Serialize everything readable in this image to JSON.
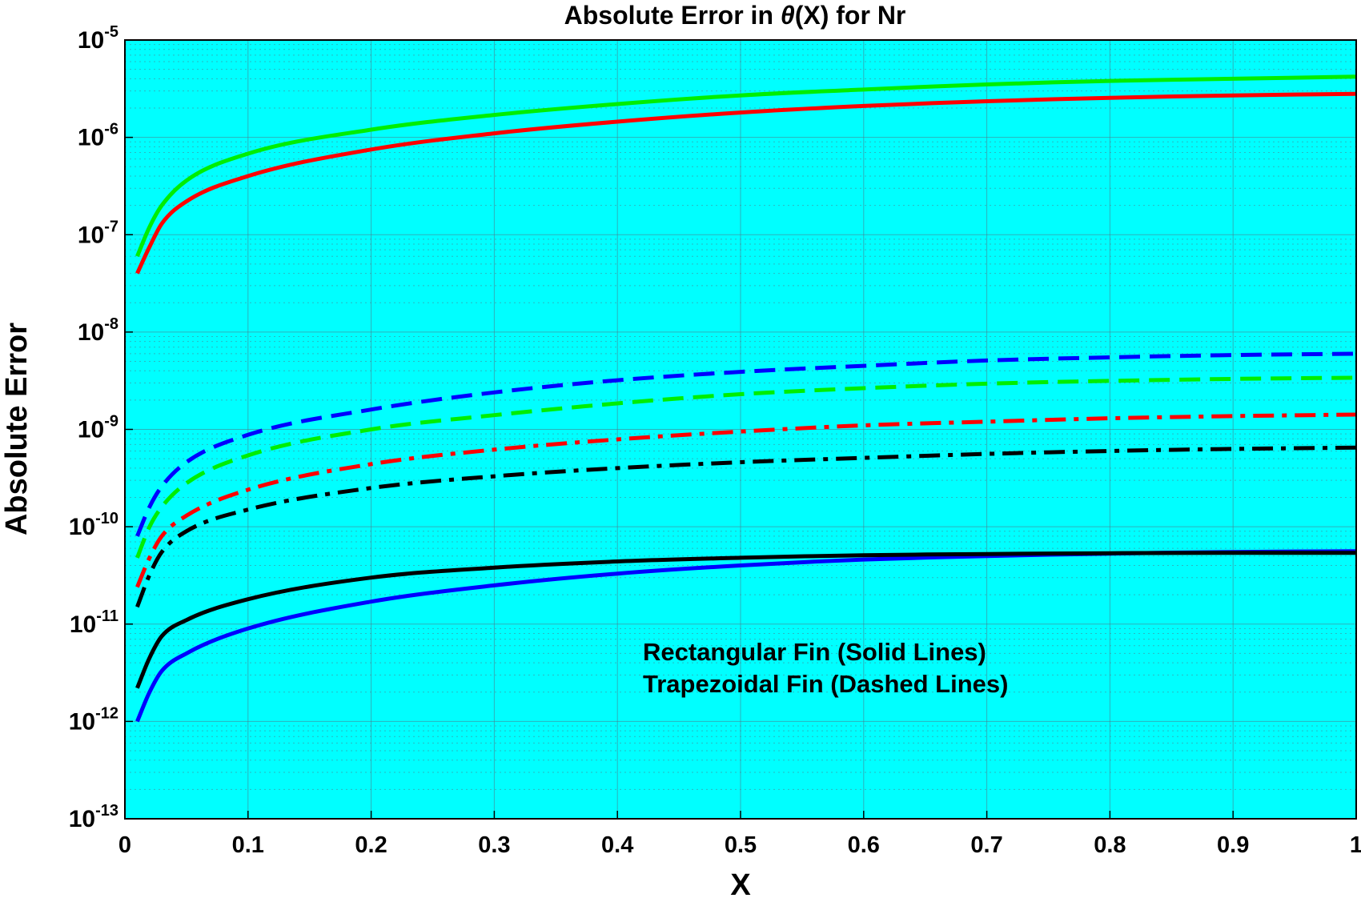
{
  "chart_data": {
    "type": "line",
    "title": {
      "prefix": "Absolute  Error  in  ",
      "symbol": "θ",
      "suffix": "(X)  for  Nr"
    },
    "xlabel": "X",
    "ylabel": "Absolute Error",
    "xlim": [
      0,
      1
    ],
    "ylim": [
      1e-13,
      1e-05
    ],
    "yscale": "log",
    "grid": true,
    "minor_grid": true,
    "background": "#00ffff",
    "x_ticks": [
      "0",
      "0.1",
      "0.2",
      "0.3",
      "0.4",
      "0.5",
      "0.6",
      "0.7",
      "0.8",
      "0.9",
      "1"
    ],
    "y_ticks": [
      {
        "base": "10",
        "exp": "-5"
      },
      {
        "base": "10",
        "exp": "-6"
      },
      {
        "base": "10",
        "exp": "-7"
      },
      {
        "base": "10",
        "exp": "-8"
      },
      {
        "base": "10",
        "exp": "-9"
      },
      {
        "base": "10",
        "exp": "-10"
      },
      {
        "base": "10",
        "exp": "-11"
      },
      {
        "base": "10",
        "exp": "-12"
      },
      {
        "base": "10",
        "exp": "-13"
      }
    ],
    "x": [
      0.01,
      0.02,
      0.03,
      0.05,
      0.1,
      0.2,
      0.3,
      0.4,
      0.5,
      0.6,
      0.7,
      0.8,
      0.9,
      1.0
    ],
    "series": [
      {
        "color": "#00ee00",
        "style": "solid",
        "values": [
          6e-08,
          1.2e-07,
          2e-07,
          3.6e-07,
          6.8e-07,
          1.2e-06,
          1.7e-06,
          2.2e-06,
          2.7e-06,
          3.1e-06,
          3.5e-06,
          3.8e-06,
          4e-06,
          4.2e-06
        ]
      },
      {
        "color": "#ff0000",
        "style": "solid",
        "values": [
          4e-08,
          7.5e-08,
          1.3e-07,
          2.2e-07,
          4e-07,
          7.5e-07,
          1.1e-06,
          1.45e-06,
          1.8e-06,
          2.1e-06,
          2.35e-06,
          2.55e-06,
          2.7e-06,
          2.8e-06
        ]
      },
      {
        "color": "#0000ff",
        "style": "dashed",
        "values": [
          8e-11,
          1.6e-10,
          2.6e-10,
          4.6e-10,
          8.8e-10,
          1.6e-09,
          2.4e-09,
          3.2e-09,
          3.9e-09,
          4.5e-09,
          5.1e-09,
          5.5e-09,
          5.8e-09,
          6e-09
        ]
      },
      {
        "color": "#00ee00",
        "style": "dashed",
        "values": [
          4.8e-11,
          1e-10,
          1.6e-10,
          2.8e-10,
          5.4e-10,
          1e-09,
          1.4e-09,
          1.85e-09,
          2.3e-09,
          2.65e-09,
          2.95e-09,
          3.15e-09,
          3.3e-09,
          3.4e-09
        ]
      },
      {
        "color": "#ff0000",
        "style": "dashdot",
        "values": [
          2.4e-11,
          4.8e-11,
          8e-11,
          1.3e-10,
          2.4e-10,
          4.4e-10,
          6.2e-10,
          7.9e-10,
          9.5e-10,
          1.1e-09,
          1.2e-09,
          1.3e-09,
          1.37e-09,
          1.42e-09
        ]
      },
      {
        "color": "#000000",
        "style": "dashdot",
        "values": [
          1.5e-11,
          3.2e-11,
          5.5e-11,
          9e-11,
          1.5e-10,
          2.5e-10,
          3.3e-10,
          4e-10,
          4.6e-10,
          5.1e-10,
          5.6e-10,
          6e-10,
          6.3e-10,
          6.5e-10
        ]
      },
      {
        "color": "#0000ff",
        "style": "solid",
        "values": [
          1e-12,
          2e-12,
          3.3e-12,
          5e-12,
          9e-12,
          1.7e-11,
          2.5e-11,
          3.3e-11,
          4e-11,
          4.6e-11,
          5e-11,
          5.3e-11,
          5.5e-11,
          5.6e-11
        ]
      },
      {
        "color": "#000000",
        "style": "solid",
        "values": [
          2.2e-12,
          4.5e-12,
          7.5e-12,
          1.1e-11,
          1.8e-11,
          3e-11,
          3.8e-11,
          4.4e-11,
          4.8e-11,
          5.1e-11,
          5.25e-11,
          5.35e-11,
          5.4e-11,
          5.4e-11
        ]
      }
    ],
    "annotations": [
      "Rectangular Fin (Solid Lines)",
      "Trapezoidal Fin (Dashed Lines)"
    ]
  }
}
